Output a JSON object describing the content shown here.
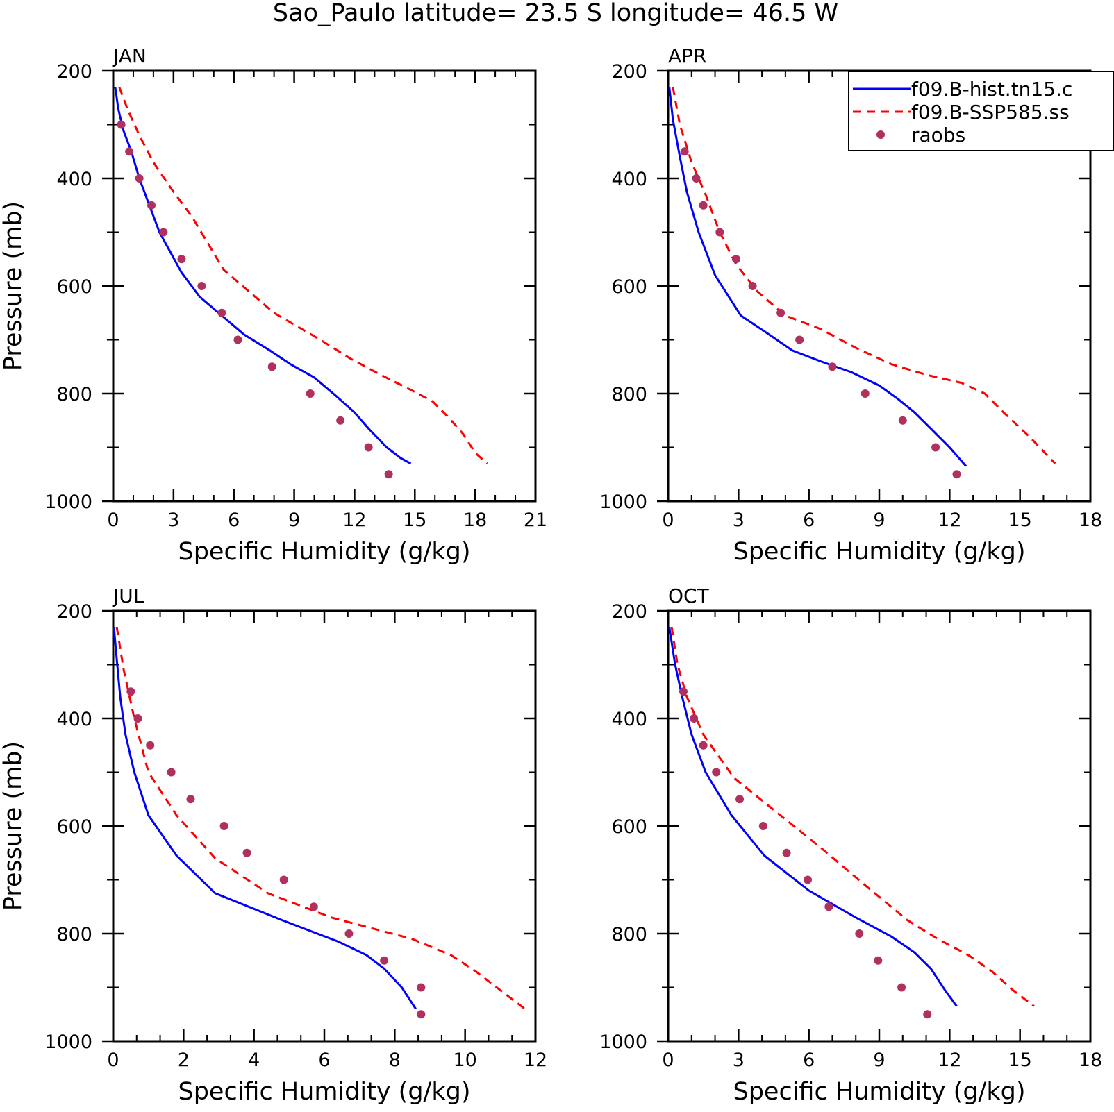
{
  "title": "Sao_Paulo  latitude= 23.5 S longitude= 46.5 W",
  "chart_data": [
    {
      "type": "line",
      "panel": "JAN",
      "xlabel": "Specific Humidity (g/kg)",
      "ylabel": "Pressure (mb)",
      "xlim": [
        0,
        21
      ],
      "ylim": [
        200,
        1000
      ],
      "y_inverted": true,
      "xticks": [
        0,
        3,
        6,
        9,
        12,
        15,
        18,
        21
      ],
      "yticks": [
        200,
        400,
        600,
        800,
        1000
      ],
      "series": [
        {
          "name": "f09.B-hist.tn15.c",
          "style": "solid",
          "color": "#0000ff",
          "x": [
            0.1,
            0.25,
            0.5,
            0.9,
            1.3,
            1.8,
            2.3,
            3.4,
            4.3,
            5.4,
            6.5,
            7.8,
            8.8,
            10.0,
            11.1,
            12.0,
            12.7,
            13.6,
            14.3,
            14.8
          ],
          "y": [
            230,
            270,
            310,
            350,
            400,
            450,
            500,
            575,
            620,
            655,
            690,
            720,
            745,
            770,
            805,
            835,
            865,
            900,
            920,
            930
          ]
        },
        {
          "name": "f09.B-SSP585.ss",
          "style": "dashed",
          "color": "#ff0000",
          "x": [
            0.3,
            0.7,
            1.3,
            2.0,
            2.9,
            3.9,
            5.5,
            8.0,
            10.3,
            11.8,
            13.3,
            14.9,
            15.9,
            16.7,
            17.4,
            18.0,
            18.6
          ],
          "y": [
            230,
            270,
            320,
            370,
            420,
            470,
            570,
            650,
            700,
            735,
            765,
            795,
            815,
            845,
            875,
            910,
            930
          ]
        }
      ],
      "points": {
        "name": "raobs",
        "color": "#b03060",
        "x": [
          0.4,
          0.8,
          1.3,
          1.9,
          2.5,
          3.4,
          4.4,
          5.4,
          6.2,
          7.9,
          9.8,
          11.3,
          12.7,
          13.7
        ],
        "y": [
          300,
          350,
          400,
          450,
          500,
          550,
          600,
          650,
          700,
          750,
          800,
          850,
          900,
          950
        ]
      }
    },
    {
      "type": "line",
      "panel": "APR",
      "xlabel": "Specific Humidity (g/kg)",
      "ylabel": "",
      "xlim": [
        0,
        18
      ],
      "ylim": [
        200,
        1000
      ],
      "y_inverted": true,
      "xticks": [
        0,
        3,
        6,
        9,
        12,
        15,
        18
      ],
      "yticks": [
        200,
        400,
        600,
        800,
        1000
      ],
      "legend_position": "top-right",
      "series": [
        {
          "name": "f09.B-hist.tn15.c",
          "style": "solid",
          "color": "#0000ff",
          "x": [
            0.05,
            0.2,
            0.5,
            0.8,
            1.3,
            2.0,
            3.1,
            4.3,
            5.3,
            6.5,
            7.8,
            9.0,
            9.8,
            10.5,
            11.2,
            12.0,
            12.7
          ],
          "y": [
            230,
            290,
            360,
            425,
            500,
            580,
            655,
            690,
            720,
            740,
            760,
            785,
            810,
            835,
            865,
            900,
            935
          ]
        },
        {
          "name": "f09.B-SSP585.ss",
          "style": "dashed",
          "color": "#ff0000",
          "x": [
            0.2,
            0.5,
            1.0,
            1.6,
            2.2,
            2.9,
            3.8,
            5.0,
            6.5,
            8.0,
            9.5,
            11.0,
            12.5,
            13.5,
            14.3,
            15.4,
            16.5
          ],
          "y": [
            230,
            300,
            370,
            430,
            500,
            560,
            610,
            655,
            680,
            715,
            745,
            765,
            780,
            800,
            835,
            880,
            930
          ]
        }
      ],
      "points": {
        "name": "raobs",
        "color": "#b03060",
        "x": [
          0.7,
          1.2,
          1.5,
          2.2,
          2.9,
          3.6,
          4.8,
          5.6,
          7.0,
          8.4,
          10.0,
          11.4,
          12.3
        ],
        "y": [
          350,
          400,
          450,
          500,
          550,
          600,
          650,
          700,
          750,
          800,
          850,
          900,
          950
        ]
      }
    },
    {
      "type": "line",
      "panel": "JUL",
      "xlabel": "Specific Humidity (g/kg)",
      "ylabel": "Pressure (mb)",
      "xlim": [
        0,
        12
      ],
      "ylim": [
        200,
        1000
      ],
      "y_inverted": true,
      "xticks": [
        0,
        2,
        4,
        6,
        8,
        10,
        12
      ],
      "yticks": [
        200,
        400,
        600,
        800,
        1000
      ],
      "series": [
        {
          "name": "f09.B-hist.tn15.c",
          "style": "solid",
          "color": "#0000ff",
          "x": [
            0.02,
            0.1,
            0.2,
            0.35,
            0.6,
            1.0,
            1.8,
            2.9,
            4.8,
            6.4,
            7.2,
            7.7,
            8.2,
            8.6
          ],
          "y": [
            230,
            290,
            360,
            430,
            500,
            580,
            655,
            725,
            775,
            815,
            840,
            865,
            900,
            940
          ]
        },
        {
          "name": "f09.B-SSP585.ss",
          "style": "dashed",
          "color": "#ff0000",
          "x": [
            0.1,
            0.3,
            0.6,
            1.0,
            1.8,
            2.9,
            4.4,
            6.2,
            8.5,
            9.6,
            10.3,
            11.0,
            11.7
          ],
          "y": [
            230,
            310,
            400,
            500,
            580,
            660,
            725,
            770,
            810,
            840,
            870,
            905,
            940
          ]
        }
      ],
      "points": {
        "name": "raobs",
        "color": "#b03060",
        "x": [
          0.5,
          0.7,
          1.05,
          1.65,
          2.2,
          3.15,
          3.8,
          4.85,
          5.7,
          6.7,
          7.7,
          8.75,
          8.75
        ],
        "y": [
          350,
          400,
          450,
          500,
          550,
          600,
          650,
          700,
          750,
          800,
          850,
          900,
          950
        ]
      }
    },
    {
      "type": "line",
      "panel": "OCT",
      "xlabel": "Specific Humidity (g/kg)",
      "ylabel": "",
      "xlim": [
        0,
        18
      ],
      "ylim": [
        200,
        1000
      ],
      "y_inverted": true,
      "xticks": [
        0,
        3,
        6,
        9,
        12,
        15,
        18
      ],
      "yticks": [
        200,
        400,
        600,
        800,
        1000
      ],
      "series": [
        {
          "name": "f09.B-hist.tn15.c",
          "style": "solid",
          "color": "#0000ff",
          "x": [
            0.05,
            0.3,
            0.6,
            1.0,
            1.6,
            2.7,
            4.1,
            6.0,
            8.0,
            9.5,
            10.5,
            11.2,
            11.8,
            12.3
          ],
          "y": [
            230,
            300,
            360,
            430,
            500,
            580,
            655,
            720,
            770,
            805,
            835,
            865,
            905,
            935
          ]
        },
        {
          "name": "f09.B-SSP585.ss",
          "style": "dashed",
          "color": "#ff0000",
          "x": [
            0.15,
            0.4,
            0.8,
            1.5,
            2.8,
            4.5,
            6.5,
            8.4,
            10.2,
            11.5,
            12.8,
            13.8,
            14.7,
            15.6
          ],
          "y": [
            230,
            300,
            360,
            430,
            510,
            570,
            640,
            710,
            775,
            810,
            840,
            870,
            905,
            935
          ]
        }
      ],
      "points": {
        "name": "raobs",
        "color": "#b03060",
        "x": [
          0.65,
          1.1,
          1.5,
          2.05,
          3.05,
          4.05,
          5.05,
          5.95,
          6.85,
          8.15,
          8.95,
          9.95,
          11.05
        ],
        "y": [
          350,
          400,
          450,
          500,
          550,
          600,
          650,
          700,
          750,
          800,
          850,
          900,
          950
        ]
      }
    }
  ],
  "legend": {
    "entries": [
      {
        "label": "f09.B-hist.tn15.c",
        "style": "solid",
        "color": "#0000ff"
      },
      {
        "label": "f09.B-SSP585.ss",
        "style": "dashed",
        "color": "#ff0000"
      },
      {
        "label": "raobs",
        "style": "marker",
        "color": "#b03060"
      }
    ]
  }
}
